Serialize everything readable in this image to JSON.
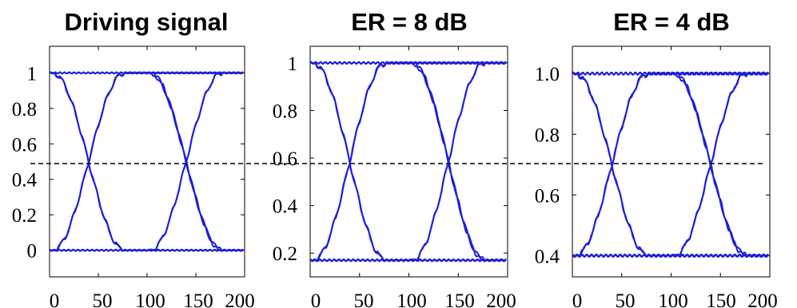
{
  "colors": {
    "trace": "#1f1fd6",
    "dashed": "#000000",
    "axis": "#000000",
    "background": "#ffffff"
  },
  "chart_data": [
    {
      "type": "line",
      "title": "Driving signal",
      "xlim": [
        0,
        200
      ],
      "ylim": [
        -0.15,
        1.15
      ],
      "xticks": [
        "0",
        "50",
        "100",
        "150",
        "200"
      ],
      "xtick_values": [
        0,
        50,
        100,
        150,
        200
      ],
      "yticks": [
        "0",
        "0.2",
        "0.4",
        "0.6",
        "0.8",
        "1"
      ],
      "ytick_values": [
        0,
        0.2,
        0.4,
        0.6,
        0.8,
        1.0
      ],
      "low": 0.0,
      "high": 1.0,
      "crossings": [
        40,
        140
      ],
      "halfwidth": 37,
      "grid": false
    },
    {
      "type": "line",
      "title": "ER = 8 dB",
      "xlim": [
        0,
        200
      ],
      "ylim": [
        0.1,
        1.07
      ],
      "xticks": [
        "0",
        "50",
        "100",
        "150",
        "200"
      ],
      "xtick_values": [
        0,
        50,
        100,
        150,
        200
      ],
      "yticks": [
        "0.2",
        "0.4",
        "0.6",
        "0.8",
        "1"
      ],
      "ytick_values": [
        0.2,
        0.4,
        0.6,
        0.8,
        1.0
      ],
      "low": 0.17,
      "high": 1.0,
      "crossings": [
        40,
        140
      ],
      "halfwidth": 37,
      "grid": false
    },
    {
      "type": "line",
      "title": "ER = 4 dB",
      "xlim": [
        0,
        200
      ],
      "ylim": [
        0.33,
        1.09
      ],
      "xticks": [
        "0",
        "50",
        "100",
        "150",
        "200"
      ],
      "xtick_values": [
        0,
        50,
        100,
        150,
        200
      ],
      "yticks": [
        "0.4",
        "0.6",
        "0.8",
        "1.0"
      ],
      "ytick_values": [
        0.4,
        0.6,
        0.8,
        1.0
      ],
      "low": 0.4,
      "high": 1.0,
      "crossings": [
        40,
        140
      ],
      "halfwidth": 37,
      "grid": false
    }
  ]
}
